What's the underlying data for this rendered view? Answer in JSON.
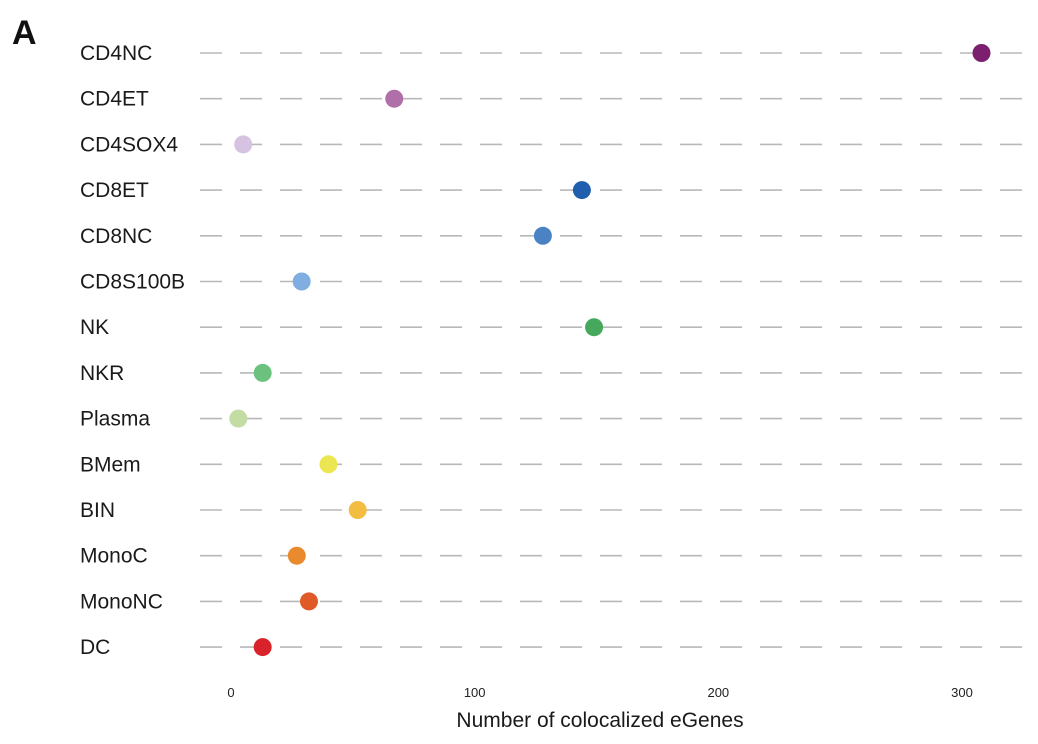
{
  "panel_label": "A",
  "chart_data": {
    "type": "scatter",
    "title": "",
    "xlabel": "Number of colocalized eGenes",
    "ylabel": "",
    "xlim": [
      -12,
      325
    ],
    "xticks": [
      0,
      100,
      200,
      300
    ],
    "xtick_labels": [
      "0",
      "100",
      "200",
      "300"
    ],
    "grid": "horizontal dashed",
    "legend": "none",
    "categories": [
      "CD4NC",
      "CD4ET",
      "CD4SOX4",
      "CD8ET",
      "CD8NC",
      "CD8S100B",
      "NK",
      "NKR",
      "Plasma",
      "BMem",
      "BIN",
      "MonoC",
      "MonoNC",
      "DC"
    ],
    "values": [
      308,
      67,
      5,
      144,
      128,
      29,
      149,
      13,
      3,
      40,
      52,
      27,
      32,
      13
    ],
    "colors": [
      "#7b1f6e",
      "#b06fa8",
      "#d6c2e1",
      "#1f5fad",
      "#4a82c4",
      "#80aee0",
      "#45a85c",
      "#6cc17e",
      "#c2dca4",
      "#ede653",
      "#f2bd40",
      "#ea8a2e",
      "#df5a27",
      "#d8232a"
    ]
  }
}
